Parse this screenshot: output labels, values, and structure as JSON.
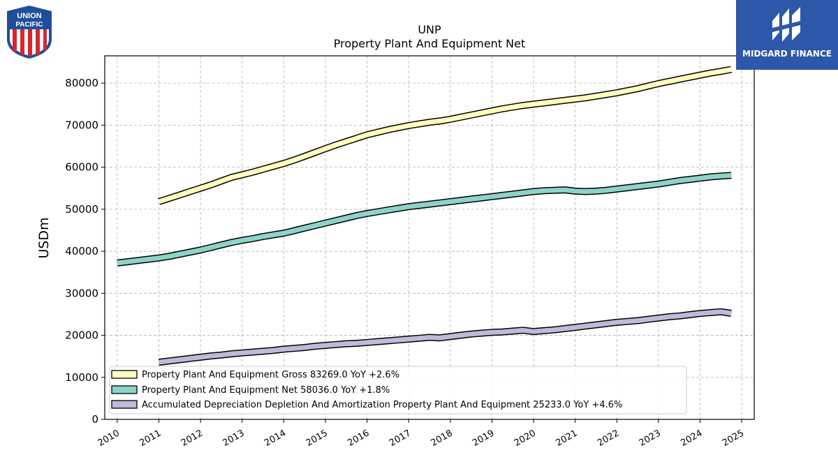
{
  "chart_data": {
    "type": "line",
    "title": "UNP",
    "subtitle": "Property Plant And Equipment Net",
    "ylabel": "USDm",
    "xlabel": "",
    "xlim": [
      2009.7,
      2025.3
    ],
    "ylim": [
      0,
      86500
    ],
    "x_ticks": [
      2010,
      2011,
      2012,
      2013,
      2014,
      2015,
      2016,
      2017,
      2018,
      2019,
      2020,
      2021,
      2022,
      2023,
      2024,
      2025
    ],
    "x_tick_labels": [
      "2010",
      "2011",
      "2012",
      "2013",
      "2014",
      "2015",
      "2016",
      "2017",
      "2018",
      "2019",
      "2020",
      "2021",
      "2022",
      "2023",
      "2024",
      "2025"
    ],
    "y_ticks": [
      0,
      10000,
      20000,
      30000,
      40000,
      50000,
      60000,
      70000,
      80000
    ],
    "y_tick_labels": [
      "0",
      "10000",
      "20000",
      "30000",
      "40000",
      "50000",
      "60000",
      "70000",
      "80000"
    ],
    "grid": true,
    "legend_position": "bottom-left",
    "series": [
      {
        "name": "Property Plant And Equipment Gross",
        "legend_label": "Property Plant And Equipment Gross  83269.0 YoY +2.6%",
        "color": "#ffffbf",
        "x": [
          2011.0,
          2011.25,
          2011.5,
          2011.75,
          2012.0,
          2012.25,
          2012.5,
          2012.75,
          2013.0,
          2013.25,
          2013.5,
          2013.75,
          2014.0,
          2014.25,
          2014.5,
          2014.75,
          2015.0,
          2015.25,
          2015.5,
          2015.75,
          2016.0,
          2016.25,
          2016.5,
          2016.75,
          2017.0,
          2017.25,
          2017.5,
          2017.75,
          2018.0,
          2018.25,
          2018.5,
          2018.75,
          2019.0,
          2019.25,
          2019.5,
          2019.75,
          2020.0,
          2020.25,
          2020.5,
          2020.75,
          2021.0,
          2021.25,
          2021.5,
          2021.75,
          2022.0,
          2022.25,
          2022.5,
          2022.75,
          2023.0,
          2023.25,
          2023.5,
          2023.75,
          2024.0,
          2024.25,
          2024.5,
          2024.75
        ],
        "y": [
          51800,
          52600,
          53400,
          54200,
          55000,
          55800,
          56700,
          57600,
          58200,
          58800,
          59500,
          60200,
          60900,
          61700,
          62600,
          63500,
          64400,
          65300,
          66100,
          66900,
          67700,
          68300,
          68900,
          69400,
          69900,
          70300,
          70700,
          71000,
          71400,
          71900,
          72400,
          72900,
          73400,
          73900,
          74300,
          74700,
          75000,
          75300,
          75600,
          75900,
          76200,
          76500,
          76900,
          77300,
          77700,
          78200,
          78700,
          79300,
          79900,
          80400,
          80900,
          81400,
          81900,
          82400,
          82800,
          83269
        ]
      },
      {
        "name": "Property Plant And Equipment Net",
        "legend_label": "Property Plant And Equipment Net  58036.0 YoY +1.8%",
        "color": "#8dd3c7",
        "x": [
          2010.0,
          2010.25,
          2010.5,
          2010.75,
          2011.0,
          2011.25,
          2011.5,
          2011.75,
          2012.0,
          2012.25,
          2012.5,
          2012.75,
          2013.0,
          2013.25,
          2013.5,
          2013.75,
          2014.0,
          2014.25,
          2014.5,
          2014.75,
          2015.0,
          2015.25,
          2015.5,
          2015.75,
          2016.0,
          2016.25,
          2016.5,
          2016.75,
          2017.0,
          2017.25,
          2017.5,
          2017.75,
          2018.0,
          2018.25,
          2018.5,
          2018.75,
          2019.0,
          2019.25,
          2019.5,
          2019.75,
          2020.0,
          2020.25,
          2020.5,
          2020.75,
          2021.0,
          2021.25,
          2021.5,
          2021.75,
          2022.0,
          2022.25,
          2022.5,
          2022.75,
          2023.0,
          2023.25,
          2023.5,
          2023.75,
          2024.0,
          2024.25,
          2024.5,
          2024.75
        ],
        "y": [
          37200,
          37500,
          37800,
          38100,
          38400,
          38800,
          39300,
          39800,
          40300,
          40900,
          41500,
          42100,
          42600,
          43000,
          43500,
          43900,
          44300,
          44900,
          45500,
          46100,
          46700,
          47300,
          47900,
          48500,
          49000,
          49400,
          49800,
          50200,
          50600,
          50900,
          51200,
          51500,
          51800,
          52100,
          52400,
          52700,
          53000,
          53300,
          53600,
          53900,
          54200,
          54400,
          54500,
          54600,
          54300,
          54200,
          54300,
          54500,
          54800,
          55100,
          55400,
          55700,
          56000,
          56400,
          56800,
          57100,
          57400,
          57700,
          57900,
          58036
        ]
      },
      {
        "name": "Accumulated Depreciation Depletion And Amortization Property Plant And Equipment",
        "legend_label": "Accumulated Depreciation Depletion And Amortization Property Plant And Equipment  25233.0 YoY +4.6%",
        "color": "#bebada",
        "x": [
          2011.0,
          2011.25,
          2011.5,
          2011.75,
          2012.0,
          2012.25,
          2012.5,
          2012.75,
          2013.0,
          2013.25,
          2013.5,
          2013.75,
          2014.0,
          2014.25,
          2014.5,
          2014.75,
          2015.0,
          2015.25,
          2015.5,
          2015.75,
          2016.0,
          2016.25,
          2016.5,
          2016.75,
          2017.0,
          2017.25,
          2017.5,
          2017.75,
          2018.0,
          2018.25,
          2018.5,
          2018.75,
          2019.0,
          2019.25,
          2019.5,
          2019.75,
          2020.0,
          2020.25,
          2020.5,
          2020.75,
          2021.0,
          2021.25,
          2021.5,
          2021.75,
          2022.0,
          2022.25,
          2022.5,
          2022.75,
          2023.0,
          2023.25,
          2023.5,
          2023.75,
          2024.0,
          2024.25,
          2024.5,
          2024.75
        ],
        "y": [
          13600,
          13900,
          14200,
          14500,
          14800,
          15100,
          15300,
          15600,
          15800,
          16000,
          16200,
          16400,
          16700,
          16900,
          17100,
          17400,
          17600,
          17800,
          18000,
          18100,
          18300,
          18500,
          18700,
          18900,
          19100,
          19300,
          19500,
          19400,
          19700,
          20000,
          20300,
          20500,
          20700,
          20800,
          21000,
          21200,
          20900,
          21100,
          21300,
          21600,
          21900,
          22200,
          22500,
          22800,
          23100,
          23300,
          23500,
          23800,
          24100,
          24400,
          24600,
          24900,
          25200,
          25400,
          25600,
          25233
        ]
      }
    ]
  },
  "branding": {
    "left_logo_text_line1": "UNION",
    "left_logo_text_line2": "PACIFIC",
    "right_logo_text": "MIDGARD FINANCE",
    "right_logo_color": "#2d57a8"
  }
}
